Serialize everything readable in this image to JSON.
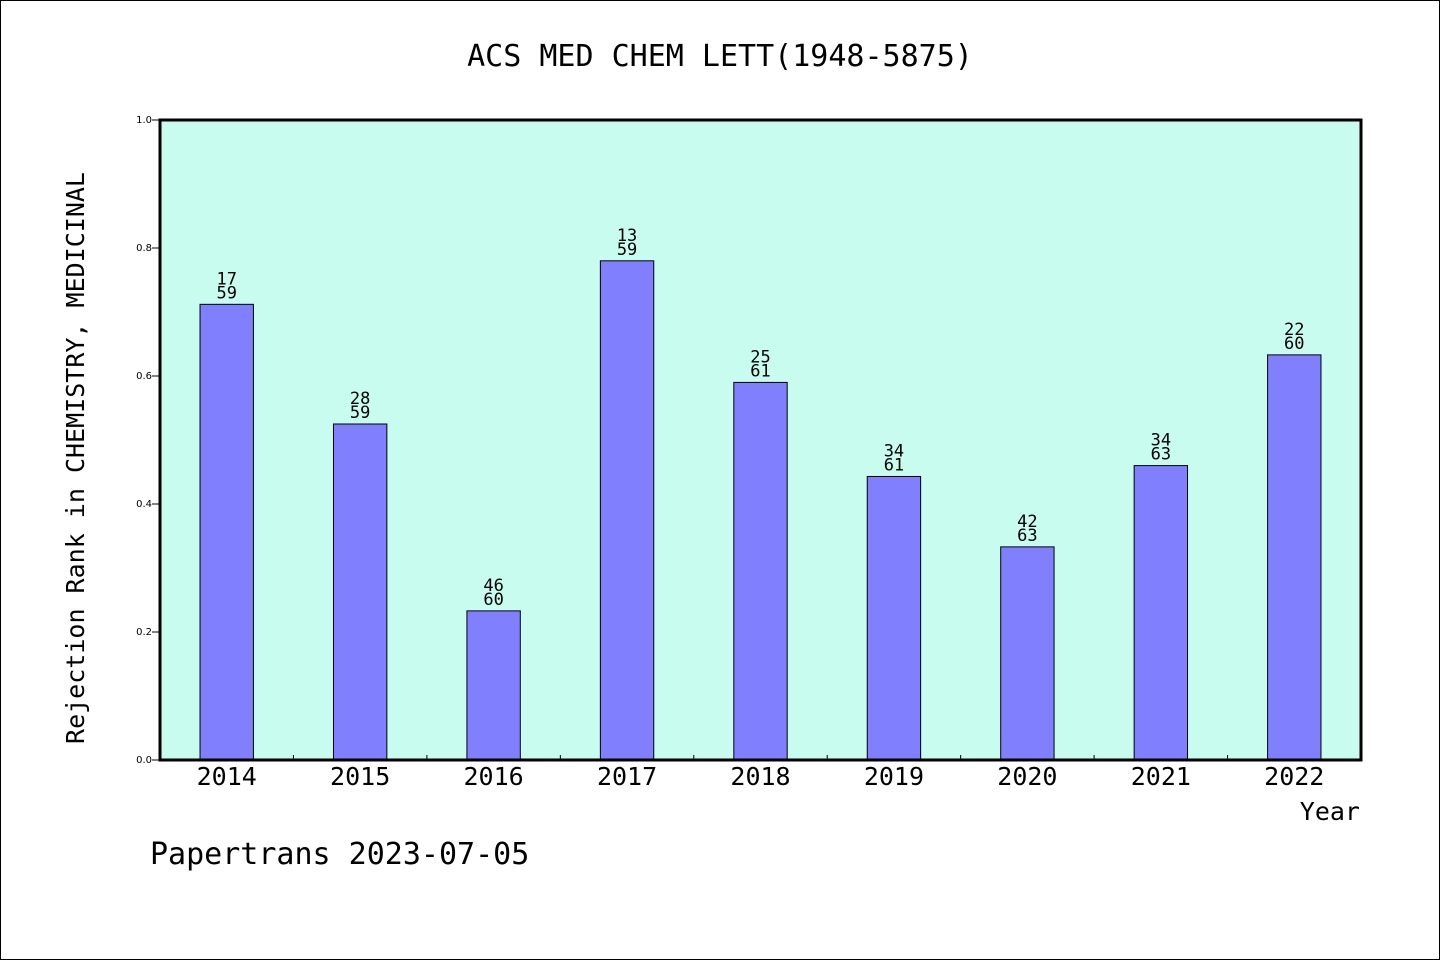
{
  "chart_data": {
    "type": "bar",
    "title": "ACS MED CHEM LETT(1948-5875)",
    "xlabel": "Year",
    "ylabel": "Rejection Rank in CHEMISTRY, MEDICINAL",
    "ylim": [
      0.0,
      1.0
    ],
    "yticks": [
      "0.0",
      "0.2",
      "0.4",
      "0.6",
      "0.8",
      "1.0"
    ],
    "categories": [
      "2014",
      "2015",
      "2016",
      "2017",
      "2018",
      "2019",
      "2020",
      "2021",
      "2022"
    ],
    "values": [
      0.712,
      0.525,
      0.233,
      0.78,
      0.59,
      0.443,
      0.333,
      0.46,
      0.633
    ],
    "label_top": [
      "17",
      "28",
      "46",
      "13",
      "25",
      "34",
      "42",
      "34",
      "22"
    ],
    "label_bottom": [
      "59",
      "59",
      "60",
      "59",
      "61",
      "61",
      "63",
      "63",
      "60"
    ],
    "grid": false,
    "legend": "none",
    "colors": {
      "plot_background": "#c8fcee",
      "bar_fill": "#8080ff",
      "bar_stroke": "#000000",
      "axis": "#000000"
    }
  },
  "footer": {
    "watermark": "Papertrans 2023-07-05"
  }
}
